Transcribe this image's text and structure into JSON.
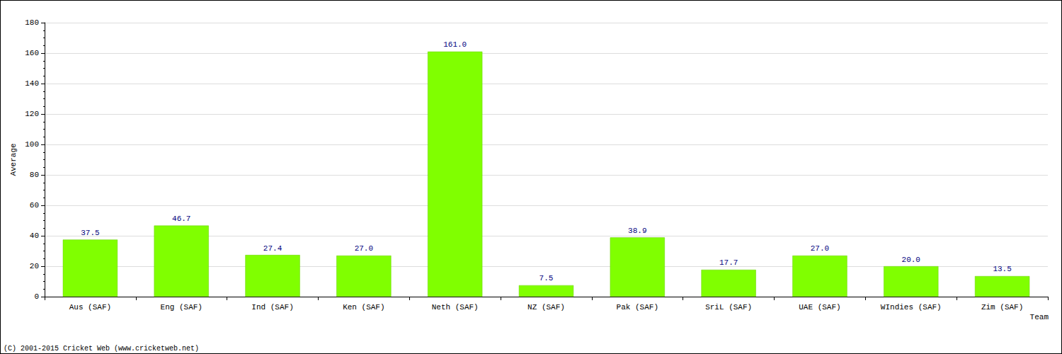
{
  "chart_data": {
    "type": "bar",
    "x_label": "Team",
    "y_label": "Average",
    "annotation": "(C) 2001-2015 Cricket Web (www.cricketweb.net)",
    "categories": [
      "Aus (SAF)",
      "Eng (SAF)",
      "Ind (SAF)",
      "Ken (SAF)",
      "Neth (SAF)",
      "NZ (SAF)",
      "Pak (SAF)",
      "SriL (SAF)",
      "UAE (SAF)",
      "WIndies (SAF)",
      "Zim (SAF)"
    ],
    "values": [
      37.5,
      46.7,
      27.4,
      27.0,
      161.0,
      7.5,
      38.9,
      17.7,
      27.0,
      20.0,
      13.5
    ],
    "value_labels": [
      "37.5",
      "46.7",
      "27.4",
      "27.0",
      "161.0",
      "7.5",
      "38.9",
      "17.7",
      "27.0",
      "20.0",
      "13.5"
    ],
    "color": "#80ff00",
    "ylim": [
      0,
      180
    ],
    "yticks": [
      0,
      20,
      40,
      60,
      80,
      100,
      120,
      140,
      160,
      180
    ],
    "grid": true,
    "data_labels": true
  }
}
